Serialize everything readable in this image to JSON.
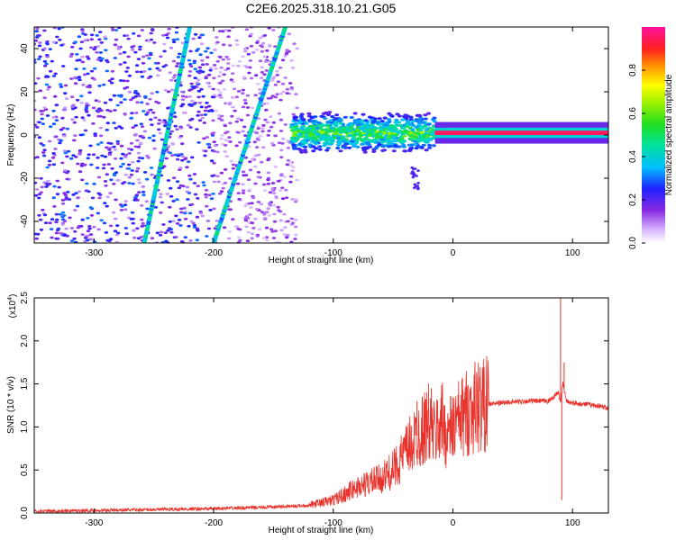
{
  "title": "C2E6.2025.318.10.21.G05",
  "chart_data": [
    {
      "type": "heatmap",
      "xlabel": "Height of straight line (km)",
      "ylabel": "Frequency (Hz)",
      "xlim": [
        -350,
        130
      ],
      "ylim": [
        -50,
        50
      ],
      "xticks": [
        -300,
        -200,
        -100,
        0,
        100
      ],
      "yticks": [
        -40,
        -20,
        0,
        20,
        40
      ],
      "colorbar": {
        "label": "Normalized spectral amplitude",
        "range": [
          0,
          1
        ],
        "ticks": [
          "0.0",
          "0.2",
          "0.4",
          "0.6",
          "0.8"
        ],
        "colormap": "rainbow (white-violet-blue-cyan-green-yellow-red-magenta)"
      },
      "features": [
        {
          "name": "scatter-noise",
          "x_range": [
            -350,
            -130
          ],
          "y_range": [
            -50,
            50
          ],
          "amplitude": 0.15
        },
        {
          "name": "line-a",
          "x": [
            -258,
            -220
          ],
          "y": [
            -50,
            50
          ],
          "amplitude": 0.45
        },
        {
          "name": "line-b",
          "x": [
            -200,
            -140
          ],
          "y": [
            -50,
            50
          ],
          "amplitude": 0.45
        },
        {
          "name": "broad-band",
          "x_range": [
            -135,
            -15
          ],
          "y_center": 1,
          "y_halfwidth": 10,
          "amplitude": 0.45
        },
        {
          "name": "narrow-band",
          "x_range": [
            -15,
            130
          ],
          "y_center": 1,
          "y_halfwidth": 2,
          "amplitude": 0.95
        },
        {
          "name": "tail",
          "x_range": [
            -35,
            -28
          ],
          "y_range": [
            -25,
            -15
          ],
          "amplitude": 0.2
        }
      ],
      "grid": false
    },
    {
      "type": "line",
      "xlabel": "Height of straight line (km)",
      "ylabel": "SNR (10 * v/v)",
      "scale_label": "(x10",
      "scale_exp": "4",
      "xlim": [
        -350,
        130
      ],
      "ylim": [
        0,
        2.5
      ],
      "xticks": [
        -300,
        -200,
        -100,
        0,
        100
      ],
      "yticks": [
        "0.0",
        "0.5",
        "1.0",
        "1.5",
        "2.0",
        "2.5"
      ],
      "series": [
        {
          "color": "#e8322b",
          "x": [
            -350,
            -300,
            -250,
            -200,
            -150,
            -120,
            -100,
            -80,
            -60,
            -50,
            -40,
            -30,
            -20,
            -15,
            -10,
            -5,
            0,
            10,
            20,
            40,
            60,
            80,
            88,
            90,
            92,
            95,
            100,
            120,
            130
          ],
          "y": [
            0.02,
            0.03,
            0.04,
            0.05,
            0.07,
            0.09,
            0.15,
            0.3,
            0.4,
            0.5,
            0.7,
            0.9,
            1.05,
            0.9,
            1.1,
            0.9,
            1.0,
            1.15,
            1.25,
            1.28,
            1.3,
            1.3,
            1.4,
            1.3,
            1.5,
            1.3,
            1.28,
            1.25,
            1.22
          ]
        }
      ],
      "spikes": [
        {
          "x": -30,
          "y": 1.3
        },
        {
          "x": -18,
          "y": 1.45
        },
        {
          "x": 10,
          "y": 1.4
        },
        {
          "x": 90,
          "y": 2.5
        },
        {
          "x": 91,
          "y": 0.15
        },
        {
          "x": 93,
          "y": 1.75
        }
      ],
      "grid": false
    }
  ]
}
